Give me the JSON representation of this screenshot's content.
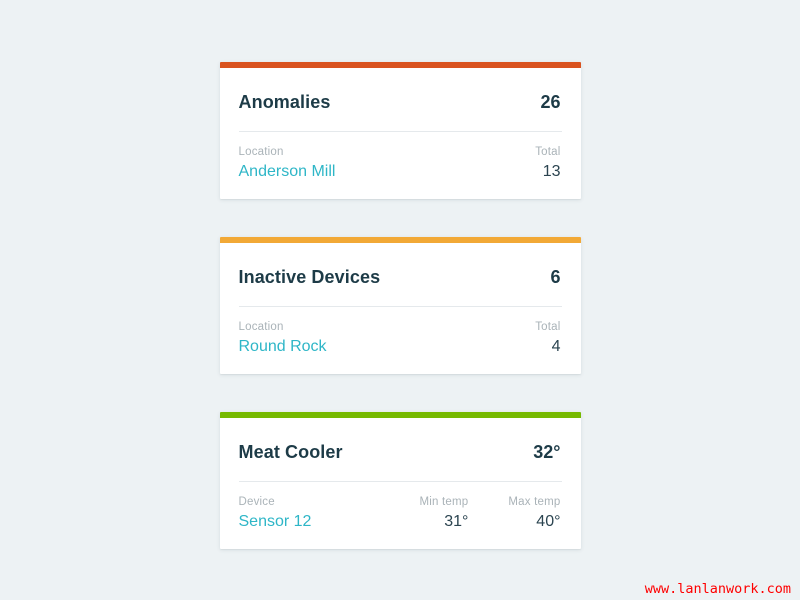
{
  "page": {
    "background_color": "#edf2f4"
  },
  "cards": [
    {
      "accent_color": "#d9531f",
      "title": "Anomalies",
      "value": "26",
      "columns": [
        {
          "label": "Location",
          "value": "Anderson Mill",
          "is_link": true
        },
        {
          "label": "Total",
          "value": "13",
          "is_link": false
        }
      ]
    },
    {
      "accent_color": "#f2a936",
      "title": "Inactive Devices",
      "value": "6",
      "columns": [
        {
          "label": "Location",
          "value": "Round Rock",
          "is_link": true
        },
        {
          "label": "Total",
          "value": "4",
          "is_link": false
        }
      ]
    },
    {
      "accent_color": "#76b900",
      "title": "Meat Cooler",
      "value": "32°",
      "columns": [
        {
          "label": "Device",
          "value": "Sensor 12",
          "is_link": true
        },
        {
          "label": "Min temp",
          "value": "31°",
          "is_link": false
        },
        {
          "label": "Max temp",
          "value": "40°",
          "is_link": false
        }
      ]
    }
  ],
  "watermark": {
    "text": "www.lanlanwork.com",
    "color": "#fe0000"
  }
}
